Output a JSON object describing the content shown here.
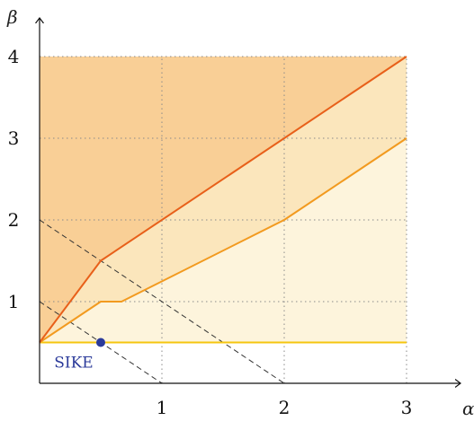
{
  "chart_data": {
    "type": "area",
    "xlabel": "α",
    "ylabel": "β",
    "xlim": [
      0,
      3.3
    ],
    "ylim": [
      0,
      4.35
    ],
    "x_ticks": [
      "1",
      "2",
      "3"
    ],
    "y_ticks": [
      "1",
      "2",
      "3",
      "4"
    ],
    "grid": true,
    "region_box": {
      "x": [
        0,
        3
      ],
      "y": [
        0.5,
        4
      ]
    },
    "series": [
      {
        "color": "#e8601a",
        "points": [
          [
            0,
            0.5
          ],
          [
            0.5,
            1.5
          ],
          [
            3,
            4
          ]
        ]
      },
      {
        "color": "#f29a1f",
        "points": [
          [
            0,
            0.5
          ],
          [
            0.5,
            1.0
          ],
          [
            0.67,
            1.0
          ],
          [
            2,
            2.0
          ],
          [
            3,
            3.0
          ]
        ]
      },
      {
        "color": "#f5c60f",
        "points": [
          [
            0,
            0.5
          ],
          [
            3,
            0.5
          ]
        ]
      }
    ],
    "dashed_lines": [
      {
        "points": [
          [
            0,
            2
          ],
          [
            2,
            0
          ]
        ]
      },
      {
        "points": [
          [
            0,
            1
          ],
          [
            1,
            0
          ]
        ]
      }
    ],
    "annotations": [
      {
        "text": "SIKE",
        "point": [
          0.5,
          0.5
        ],
        "color": "#2b3a9a"
      }
    ],
    "colors": {
      "region_top": "#f9cf96",
      "region_mid": "#fbe6bc",
      "region_low": "#fdf4dc"
    }
  }
}
